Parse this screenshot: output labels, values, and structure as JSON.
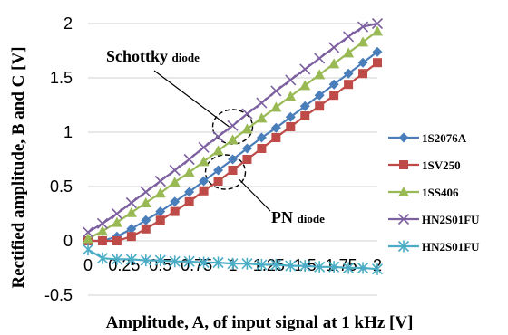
{
  "chart_data": {
    "type": "line",
    "title": "",
    "xlabel": "Amplitude, A, of input signal at 1 kHz [V]",
    "ylabel": "Rectified amplitude, B and C [V]",
    "xlim": [
      0,
      2
    ],
    "ylim": [
      -0.5,
      2
    ],
    "grid": "horizontal",
    "legend_position": "right",
    "x_ticks": [
      "0",
      "0.25",
      "0.5",
      "0.75",
      "1",
      "1.25",
      "1.5",
      "1.75",
      "2"
    ],
    "y_ticks": [
      "-0.5",
      "0",
      "0.5",
      "1",
      "1.5",
      "2"
    ],
    "x": [
      0,
      0.1,
      0.2,
      0.3,
      0.4,
      0.5,
      0.6,
      0.7,
      0.8,
      0.9,
      1.0,
      1.1,
      1.2,
      1.3,
      1.4,
      1.5,
      1.6,
      1.7,
      1.8,
      1.9,
      2.0
    ],
    "series": [
      {
        "name": "1S2076A",
        "color": "#4a7ebb",
        "marker": "diamond",
        "values": [
          0.0,
          0.0,
          0.04,
          0.11,
          0.19,
          0.27,
          0.36,
          0.45,
          0.55,
          0.65,
          0.75,
          0.85,
          0.95,
          1.04,
          1.14,
          1.24,
          1.34,
          1.44,
          1.54,
          1.64,
          1.74
        ]
      },
      {
        "name": "1SV250",
        "color": "#be4b48",
        "marker": "square",
        "values": [
          0.0,
          0.0,
          0.0,
          0.04,
          0.11,
          0.19,
          0.27,
          0.36,
          0.46,
          0.55,
          0.65,
          0.75,
          0.85,
          0.95,
          1.05,
          1.15,
          1.24,
          1.34,
          1.44,
          1.54,
          1.64
        ]
      },
      {
        "name": "1SS406",
        "color": "#98b954",
        "marker": "triangle",
        "values": [
          0.02,
          0.09,
          0.17,
          0.26,
          0.35,
          0.44,
          0.54,
          0.63,
          0.73,
          0.83,
          0.93,
          1.03,
          1.13,
          1.23,
          1.33,
          1.43,
          1.53,
          1.63,
          1.73,
          1.83,
          1.93
        ]
      },
      {
        "name": "HN2S01FU",
        "color": "#7d60a0",
        "marker": "x",
        "values": [
          0.08,
          0.16,
          0.25,
          0.35,
          0.45,
          0.55,
          0.65,
          0.75,
          0.86,
          0.96,
          1.06,
          1.17,
          1.27,
          1.38,
          1.48,
          1.58,
          1.68,
          1.78,
          1.88,
          1.97,
          2.0
        ]
      },
      {
        "name": "HN2S01FU",
        "color": "#4bacc6",
        "marker": "star",
        "values": [
          -0.08,
          -0.16,
          -0.17,
          -0.17,
          -0.18,
          -0.18,
          -0.19,
          -0.19,
          -0.2,
          -0.2,
          -0.21,
          -0.21,
          -0.22,
          -0.22,
          -0.23,
          -0.23,
          -0.24,
          -0.24,
          -0.25,
          -0.25,
          -0.26
        ]
      }
    ],
    "annotations": [
      {
        "label": "Schottky",
        "sub": "diode",
        "x": 1.0,
        "y": 1.0
      },
      {
        "label": "PN",
        "sub": "diode",
        "x": 0.95,
        "y": 0.6
      }
    ]
  }
}
